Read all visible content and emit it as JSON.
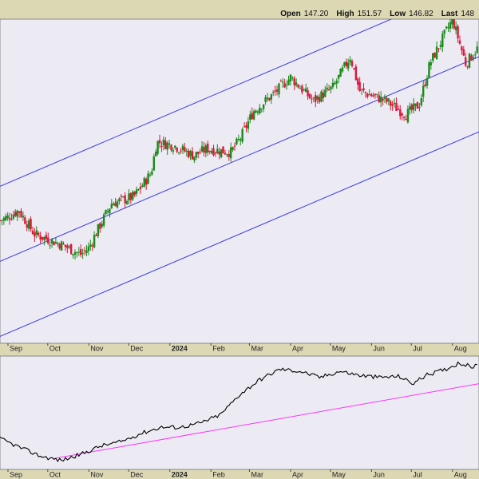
{
  "ohlc": {
    "open_label": "Open",
    "open_value": "147.20",
    "high_label": "High",
    "high_value": "151.57",
    "low_label": "Low",
    "low_value": "146.82",
    "last_label": "Last",
    "last_value": "148"
  },
  "colors": {
    "background": "#dcd8b4",
    "plot": "#ecebf3",
    "up_candle": "#1a8a1a",
    "down_candle": "#e0153a",
    "channel": "#3a3ae8",
    "indicator_line": "#000000",
    "indicator_trend": "#ff33ff"
  },
  "chart_data": [
    {
      "type": "candlestick",
      "title": "",
      "x_tick_labels": [
        "Sep",
        "Oct",
        "Nov",
        "Dec",
        "2024",
        "Feb",
        "Mar",
        "Apr",
        "May",
        "Jun",
        "Jul",
        "Aug"
      ],
      "x_tick_bold": [
        false,
        false,
        false,
        false,
        true,
        false,
        false,
        false,
        false,
        false,
        false,
        false
      ],
      "x_tick_days": [
        0,
        30,
        61,
        91,
        122,
        153,
        182,
        213,
        243,
        274,
        304,
        335
      ],
      "x_range_days": [
        -6,
        355
      ],
      "y_range": [
        60,
        155
      ],
      "grid": false,
      "price_path": [
        {
          "day": -6,
          "close": 96
        },
        {
          "day": 0,
          "close": 97
        },
        {
          "day": 8,
          "close": 99
        },
        {
          "day": 20,
          "close": 92
        },
        {
          "day": 40,
          "close": 89
        },
        {
          "day": 55,
          "close": 86
        },
        {
          "day": 61,
          "close": 88
        },
        {
          "day": 66,
          "close": 92
        },
        {
          "day": 78,
          "close": 101
        },
        {
          "day": 95,
          "close": 103
        },
        {
          "day": 108,
          "close": 110
        },
        {
          "day": 112,
          "close": 119
        },
        {
          "day": 125,
          "close": 118
        },
        {
          "day": 140,
          "close": 115
        },
        {
          "day": 150,
          "close": 117
        },
        {
          "day": 168,
          "close": 116
        },
        {
          "day": 175,
          "close": 120
        },
        {
          "day": 185,
          "close": 128
        },
        {
          "day": 200,
          "close": 133
        },
        {
          "day": 213,
          "close": 138
        },
        {
          "day": 230,
          "close": 131
        },
        {
          "day": 245,
          "close": 135
        },
        {
          "day": 258,
          "close": 144
        },
        {
          "day": 265,
          "close": 134
        },
        {
          "day": 285,
          "close": 131
        },
        {
          "day": 300,
          "close": 127
        },
        {
          "day": 310,
          "close": 130
        },
        {
          "day": 318,
          "close": 142
        },
        {
          "day": 335,
          "close": 155
        },
        {
          "day": 345,
          "close": 142
        },
        {
          "day": 355,
          "close": 147
        }
      ],
      "trendlines": [
        {
          "kind": "channel-upper",
          "from": {
            "day": -6,
            "value": 106
          },
          "to": {
            "day": 355,
            "value": 166
          }
        },
        {
          "kind": "channel-middle",
          "from": {
            "day": -6,
            "value": 84
          },
          "to": {
            "day": 355,
            "value": 144
          }
        },
        {
          "kind": "channel-lower",
          "from": {
            "day": -6,
            "value": 62
          },
          "to": {
            "day": 355,
            "value": 122
          }
        }
      ]
    },
    {
      "type": "line",
      "title": "",
      "x_tick_labels": [
        "Sep",
        "Oct",
        "Nov",
        "Dec",
        "2024",
        "Feb",
        "Mar",
        "Apr",
        "May",
        "Jun",
        "Jul",
        "Aug"
      ],
      "x_tick_days": [
        0,
        30,
        61,
        91,
        122,
        153,
        182,
        213,
        243,
        274,
        304,
        335
      ],
      "y_range": [
        0,
        100
      ],
      "series": [
        {
          "values": [
            {
              "day": -6,
              "value": 25
            },
            {
              "day": 10,
              "value": 16
            },
            {
              "day": 25,
              "value": 8
            },
            {
              "day": 40,
              "value": 4
            },
            {
              "day": 55,
              "value": 10
            },
            {
              "day": 70,
              "value": 18
            },
            {
              "day": 85,
              "value": 22
            },
            {
              "day": 100,
              "value": 30
            },
            {
              "day": 115,
              "value": 36
            },
            {
              "day": 130,
              "value": 36
            },
            {
              "day": 145,
              "value": 40
            },
            {
              "day": 160,
              "value": 48
            },
            {
              "day": 175,
              "value": 68
            },
            {
              "day": 190,
              "value": 82
            },
            {
              "day": 205,
              "value": 92
            },
            {
              "day": 220,
              "value": 90
            },
            {
              "day": 235,
              "value": 84
            },
            {
              "day": 250,
              "value": 90
            },
            {
              "day": 265,
              "value": 86
            },
            {
              "day": 280,
              "value": 84
            },
            {
              "day": 295,
              "value": 85
            },
            {
              "day": 305,
              "value": 78
            },
            {
              "day": 315,
              "value": 86
            },
            {
              "day": 330,
              "value": 92
            },
            {
              "day": 340,
              "value": 98
            },
            {
              "day": 350,
              "value": 94
            },
            {
              "day": 355,
              "value": 96
            }
          ]
        }
      ],
      "trendlines": [
        {
          "kind": "support",
          "from": {
            "day": 35,
            "value": 6
          },
          "to": {
            "day": 355,
            "value": 78
          }
        }
      ]
    }
  ]
}
